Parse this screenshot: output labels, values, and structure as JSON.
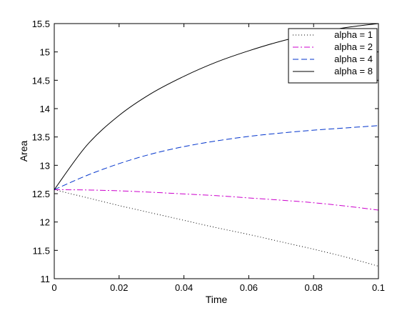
{
  "chart_data": {
    "type": "line",
    "title": "",
    "xlabel": "Time",
    "ylabel": "Area",
    "xlim": [
      0,
      0.1
    ],
    "ylim": [
      11,
      15.5
    ],
    "xticks": [
      0,
      0.02,
      0.04,
      0.06,
      0.08,
      0.1
    ],
    "xtick_labels": [
      "0",
      "0.02",
      "0.04",
      "0.06",
      "0.08",
      "0.1"
    ],
    "yticks": [
      11,
      11.5,
      12,
      12.5,
      13,
      13.5,
      14,
      14.5,
      15,
      15.5
    ],
    "ytick_labels": [
      "11",
      "11.5",
      "12",
      "12.5",
      "13",
      "13.5",
      "14",
      "14.5",
      "15",
      "15.5"
    ],
    "grid": false,
    "legend_position": "top-right",
    "x": [
      0,
      0.01,
      0.02,
      0.03,
      0.04,
      0.05,
      0.06,
      0.07,
      0.08,
      0.09,
      0.1
    ],
    "series": [
      {
        "name": "alpha = 1",
        "color": "#000000",
        "style": "dotted",
        "values": [
          12.57,
          12.43,
          12.29,
          12.16,
          12.03,
          11.9,
          11.78,
          11.65,
          11.52,
          11.38,
          11.22
        ]
      },
      {
        "name": "alpha = 2",
        "color": "#cc00cc",
        "style": "dashdot",
        "values": [
          12.57,
          12.565,
          12.55,
          12.525,
          12.495,
          12.465,
          12.425,
          12.385,
          12.34,
          12.28,
          12.21
        ]
      },
      {
        "name": "alpha = 4",
        "color": "#0033cc",
        "style": "dashed",
        "values": [
          12.57,
          12.82,
          13.03,
          13.2,
          13.33,
          13.43,
          13.51,
          13.57,
          13.62,
          13.66,
          13.7
        ]
      },
      {
        "name": "alpha = 8",
        "color": "#000000",
        "style": "solid",
        "values": [
          12.57,
          13.35,
          13.88,
          14.27,
          14.57,
          14.82,
          15.02,
          15.19,
          15.32,
          15.43,
          15.5
        ]
      }
    ]
  }
}
